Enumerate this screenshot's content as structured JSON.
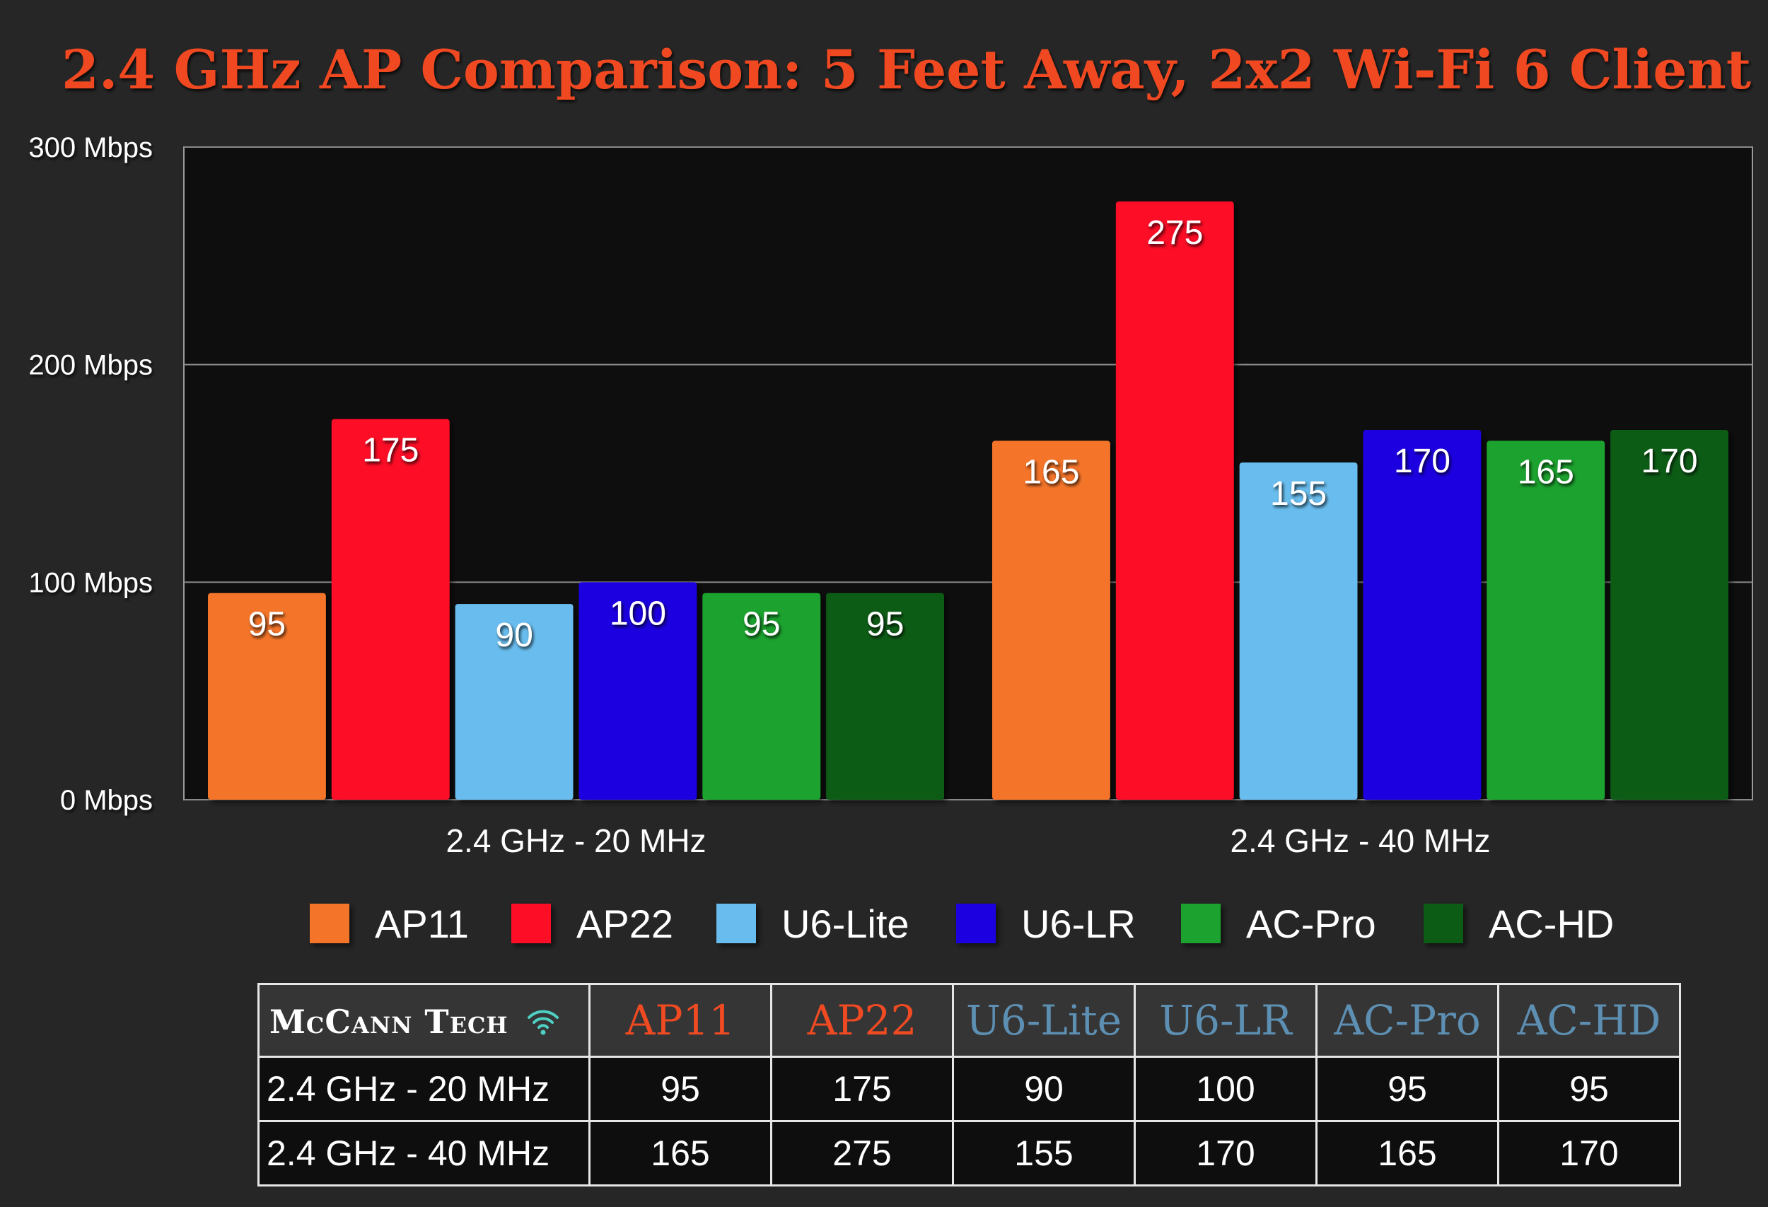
{
  "chart_data": {
    "type": "bar",
    "title": "2.4 GHz AP Comparison: 5 Feet Away, 2x2 Wi-Fi 6 Client",
    "categories": [
      "2.4 GHz - 20 MHz",
      "2.4 GHz - 40 MHz"
    ],
    "series": [
      {
        "name": "AP11",
        "color": "#f4742a",
        "values": [
          95,
          165
        ]
      },
      {
        "name": "AP22",
        "color": "#fd0726",
        "values": [
          175,
          275
        ]
      },
      {
        "name": "U6-Lite",
        "color": "#69bdee",
        "values": [
          90,
          155
        ]
      },
      {
        "name": "U6-LR",
        "color": "#1f00e0",
        "values": [
          100,
          170
        ]
      },
      {
        "name": "AC-Pro",
        "color": "#1fa22e",
        "values": [
          95,
          165
        ]
      },
      {
        "name": "AC-HD",
        "color": "#0c5c17",
        "values": [
          95,
          170
        ]
      }
    ],
    "ylim": [
      0,
      300
    ],
    "yticks": [
      0,
      100,
      200,
      300
    ],
    "ytick_labels": [
      "0 Mbps",
      "100 Mbps",
      "200 Mbps",
      "300 Mbps"
    ],
    "grid": true,
    "legend_position": "bottom"
  },
  "table": {
    "brand": "McCann Tech",
    "brand_icon": "wifi-icon",
    "headers": [
      {
        "label": "AP11",
        "color": "#f04a22"
      },
      {
        "label": "AP22",
        "color": "#f04a22"
      },
      {
        "label": "U6-Lite",
        "color": "#5d8fb3"
      },
      {
        "label": "U6-LR",
        "color": "#5d8fb3"
      },
      {
        "label": "AC-Pro",
        "color": "#5d8fb3"
      },
      {
        "label": "AC-HD",
        "color": "#5d8fb3"
      }
    ],
    "rows": [
      {
        "label": "2.4 GHz - 20 MHz",
        "values": [
          "95",
          "175",
          "90",
          "100",
          "95",
          "95"
        ]
      },
      {
        "label": "2.4 GHz - 40 MHz",
        "values": [
          "165",
          "275",
          "155",
          "170",
          "165",
          "170"
        ]
      }
    ]
  },
  "colors": {
    "background": "#262626",
    "plot_background": "#0e0e0e",
    "title": "#f04a22",
    "wifi_icon": "#4fd0c4"
  }
}
